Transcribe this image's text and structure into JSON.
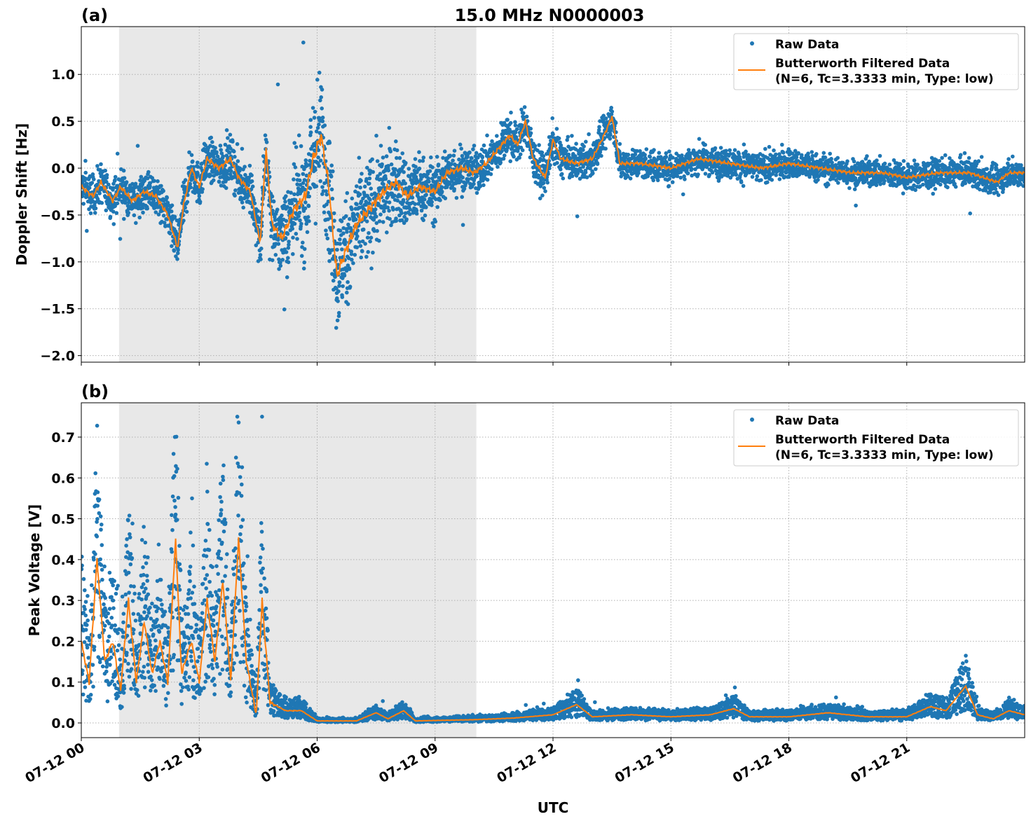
{
  "title": "15.0 MHz N0000003",
  "xlabel": "UTC",
  "x_tick_labels": [
    "07-12 00",
    "07-12 03",
    "07-12 06",
    "07-12 09",
    "07-12 12",
    "07-12 15",
    "07-12 18",
    "07-12 21"
  ],
  "x_tick_hours": [
    0,
    3,
    6,
    9,
    12,
    15,
    18,
    21
  ],
  "colors": {
    "raw": "#1f77b4",
    "filtered": "#ff7f0e",
    "shade": "#e8e8e8",
    "grid": "#b0b0b0"
  },
  "legend": {
    "raw": "Raw Data",
    "filtered_line1": "Butterworth Filtered Data",
    "filtered_line2": "(N=6, Tc=3.3333 min, Type: low)",
    "placement": "upper-right"
  },
  "chart_data": [
    {
      "type": "scatter+line",
      "panel_label": "(a)",
      "ylabel": "Doppler Shift [Hz]",
      "xlim_hours": [
        0,
        24
      ],
      "ylim": [
        -2.07,
        1.51
      ],
      "yticks": [
        -2.0,
        -1.5,
        -1.0,
        -0.5,
        0.0,
        0.5,
        1.0
      ],
      "ytick_labels": [
        "−2.0",
        "−1.5",
        "−1.0",
        "−0.5",
        "0.0",
        "0.5",
        "1.0"
      ],
      "shaded_hours": [
        0.96,
        10.05
      ],
      "grid": true,
      "filtered": [
        [
          0,
          -0.2
        ],
        [
          0.3,
          -0.3
        ],
        [
          0.5,
          -0.15
        ],
        [
          0.8,
          -0.35
        ],
        [
          1.0,
          -0.2
        ],
        [
          1.3,
          -0.35
        ],
        [
          1.6,
          -0.25
        ],
        [
          1.9,
          -0.3
        ],
        [
          2.2,
          -0.5
        ],
        [
          2.45,
          -0.85
        ],
        [
          2.6,
          -0.4
        ],
        [
          2.8,
          0.0
        ],
        [
          3.0,
          -0.2
        ],
        [
          3.2,
          0.1
        ],
        [
          3.5,
          0.0
        ],
        [
          3.8,
          0.1
        ],
        [
          4.0,
          -0.1
        ],
        [
          4.3,
          -0.25
        ],
        [
          4.55,
          -0.8
        ],
        [
          4.7,
          0.2
        ],
        [
          4.85,
          -0.6
        ],
        [
          5.1,
          -0.75
        ],
        [
          5.4,
          -0.45
        ],
        [
          5.7,
          -0.3
        ],
        [
          5.9,
          0.1
        ],
        [
          6.1,
          0.35
        ],
        [
          6.3,
          -0.2
        ],
        [
          6.5,
          -1.15
        ],
        [
          6.8,
          -0.8
        ],
        [
          7.0,
          -0.6
        ],
        [
          7.3,
          -0.45
        ],
        [
          7.7,
          -0.25
        ],
        [
          8.0,
          -0.15
        ],
        [
          8.3,
          -0.3
        ],
        [
          8.6,
          -0.2
        ],
        [
          9.0,
          -0.25
        ],
        [
          9.3,
          -0.05
        ],
        [
          9.7,
          0.0
        ],
        [
          10.0,
          -0.05
        ],
        [
          10.3,
          0.05
        ],
        [
          10.6,
          0.2
        ],
        [
          10.9,
          0.35
        ],
        [
          11.1,
          0.25
        ],
        [
          11.3,
          0.5
        ],
        [
          11.5,
          0.1
        ],
        [
          11.8,
          -0.1
        ],
        [
          12.0,
          0.3
        ],
        [
          12.2,
          0.1
        ],
        [
          12.6,
          0.05
        ],
        [
          13.0,
          0.1
        ],
        [
          13.3,
          0.35
        ],
        [
          13.5,
          0.55
        ],
        [
          13.7,
          0.05
        ],
        [
          14.2,
          0.05
        ],
        [
          15.0,
          0.0
        ],
        [
          15.7,
          0.1
        ],
        [
          16.5,
          0.05
        ],
        [
          17.3,
          0.0
        ],
        [
          18.0,
          0.05
        ],
        [
          18.8,
          0.0
        ],
        [
          19.6,
          -0.05
        ],
        [
          20.4,
          -0.05
        ],
        [
          21.0,
          -0.1
        ],
        [
          21.8,
          -0.05
        ],
        [
          22.6,
          -0.05
        ],
        [
          23.3,
          -0.15
        ],
        [
          23.6,
          -0.05
        ],
        [
          24,
          -0.05
        ]
      ],
      "raw_spread": [
        [
          0,
          0.1
        ],
        [
          4.4,
          0.12
        ],
        [
          5.0,
          0.2
        ],
        [
          6,
          0.35
        ],
        [
          7.5,
          0.25
        ],
        [
          9,
          0.15
        ],
        [
          10,
          0.12
        ],
        [
          14,
          0.08
        ],
        [
          24,
          0.07
        ]
      ],
      "raw_min": -1.9,
      "raw_max": 1.34
    },
    {
      "type": "scatter+line",
      "panel_label": "(b)",
      "ylabel": "Peak Voltage [V]",
      "xlim_hours": [
        0,
        24
      ],
      "ylim": [
        -0.036,
        0.784
      ],
      "yticks": [
        0.0,
        0.1,
        0.2,
        0.3,
        0.4,
        0.5,
        0.6,
        0.7
      ],
      "ytick_labels": [
        "0.0",
        "0.1",
        "0.2",
        "0.3",
        "0.4",
        "0.5",
        "0.6",
        "0.7"
      ],
      "shaded_hours": [
        0.96,
        10.05
      ],
      "grid": true,
      "filtered": [
        [
          0,
          0.2
        ],
        [
          0.2,
          0.1
        ],
        [
          0.4,
          0.4
        ],
        [
          0.6,
          0.15
        ],
        [
          0.8,
          0.2
        ],
        [
          1.0,
          0.08
        ],
        [
          1.2,
          0.3
        ],
        [
          1.4,
          0.1
        ],
        [
          1.6,
          0.25
        ],
        [
          1.8,
          0.12
        ],
        [
          2.0,
          0.2
        ],
        [
          2.2,
          0.1
        ],
        [
          2.4,
          0.45
        ],
        [
          2.55,
          0.12
        ],
        [
          2.8,
          0.2
        ],
        [
          3.0,
          0.1
        ],
        [
          3.2,
          0.3
        ],
        [
          3.4,
          0.15
        ],
        [
          3.6,
          0.35
        ],
        [
          3.8,
          0.1
        ],
        [
          4.0,
          0.45
        ],
        [
          4.2,
          0.15
        ],
        [
          4.45,
          0.02
        ],
        [
          4.6,
          0.3
        ],
        [
          4.8,
          0.05
        ],
        [
          5.2,
          0.03
        ],
        [
          5.6,
          0.03
        ],
        [
          6.0,
          0.005
        ],
        [
          7.0,
          0.005
        ],
        [
          7.5,
          0.025
        ],
        [
          7.8,
          0.01
        ],
        [
          8.2,
          0.03
        ],
        [
          8.5,
          0.005
        ],
        [
          10,
          0.008
        ],
        [
          11,
          0.012
        ],
        [
          12,
          0.02
        ],
        [
          12.6,
          0.045
        ],
        [
          13,
          0.015
        ],
        [
          14,
          0.02
        ],
        [
          15,
          0.015
        ],
        [
          16,
          0.02
        ],
        [
          16.6,
          0.035
        ],
        [
          17,
          0.015
        ],
        [
          18,
          0.015
        ],
        [
          19,
          0.025
        ],
        [
          20,
          0.015
        ],
        [
          21,
          0.015
        ],
        [
          21.6,
          0.04
        ],
        [
          22,
          0.03
        ],
        [
          22.5,
          0.09
        ],
        [
          22.8,
          0.02
        ],
        [
          23.2,
          0.01
        ],
        [
          23.6,
          0.03
        ],
        [
          24,
          0.02
        ]
      ],
      "raw_spread": [
        [
          0,
          0.06
        ],
        [
          4.7,
          0.06
        ],
        [
          5.0,
          0.01
        ],
        [
          6,
          0.003
        ],
        [
          24,
          0.006
        ]
      ],
      "raw_min": 0.0,
      "raw_max": 0.75
    }
  ]
}
